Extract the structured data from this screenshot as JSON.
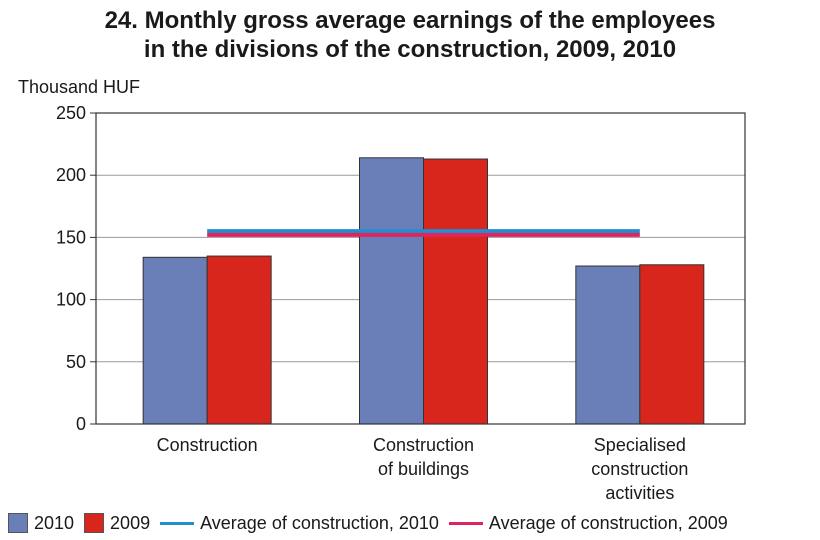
{
  "chart_data": {
    "type": "bar",
    "title_lines": [
      "24. Monthly gross average earnings of the employees",
      "in the divisions of the construction, 2009, 2010"
    ],
    "ylabel": "Thousand HUF",
    "ylim": [
      0,
      250
    ],
    "yticks": [
      0,
      50,
      100,
      150,
      200,
      250
    ],
    "categories": [
      [
        "Construction"
      ],
      [
        "Construction",
        "of buildings"
      ],
      [
        "Specialised",
        "construction",
        "activities"
      ]
    ],
    "series": [
      {
        "name": "2010",
        "values": [
          134,
          214,
          127
        ],
        "color": "#6a7fb8"
      },
      {
        "name": "2009",
        "values": [
          135,
          213,
          128
        ],
        "color": "#d9261c"
      }
    ],
    "reference_lines": [
      {
        "name": "Average of construction, 2010",
        "value": 155,
        "color": "#1f8fd0"
      },
      {
        "name": "Average of construction, 2009",
        "value": 152,
        "color": "#e0245e"
      }
    ],
    "grid": true
  }
}
